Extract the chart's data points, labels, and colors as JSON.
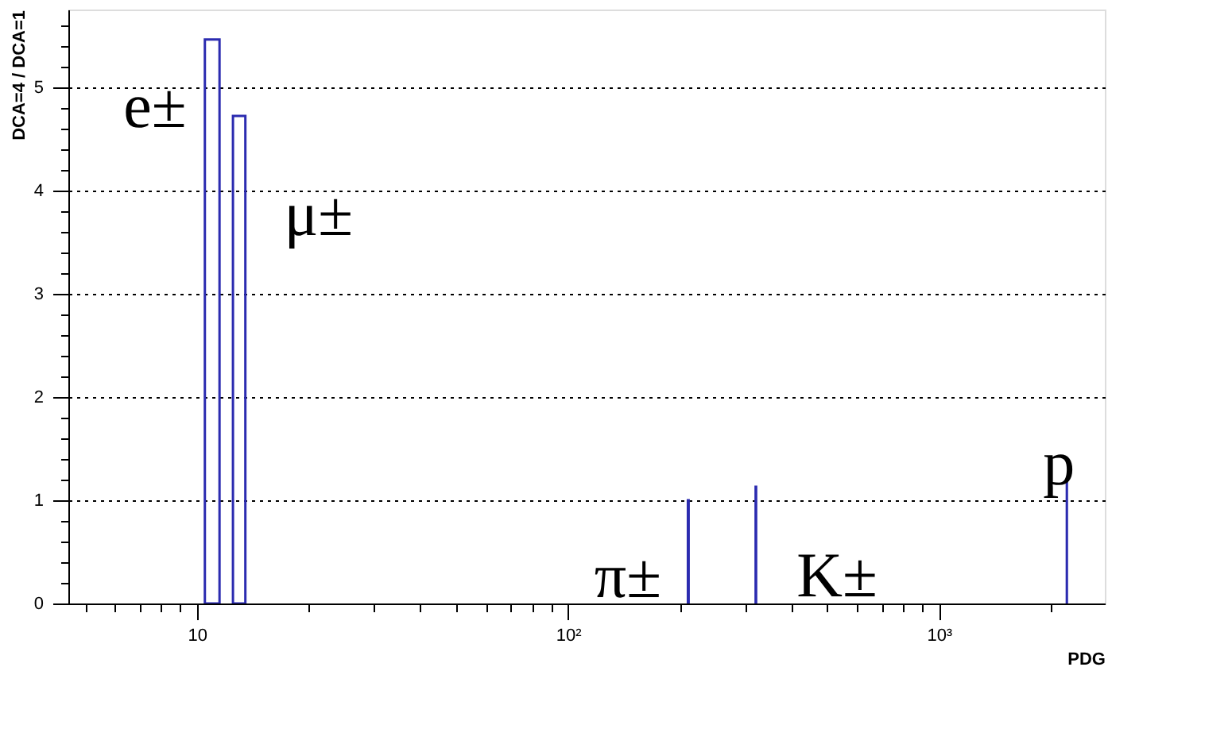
{
  "chart_data": {
    "type": "histogram",
    "xlabel": "PDG",
    "ylabel": "DCA=4 / DCA=1",
    "log": "x",
    "color": "#2b2bb0",
    "bins": [
      10.5,
      11.5,
      12.5,
      13.5,
      210.5,
      211.5,
      320.5,
      321.5,
      2211.5,
      2212.5
    ],
    "values": [
      5.46,
      0,
      4.72,
      0,
      1.0,
      0,
      1.13,
      0,
      1.17
    ],
    "xlim": [
      4.5,
      2800
    ],
    "ylim": [
      0,
      5.75
    ],
    "xticks": [
      {
        "value": 5,
        "label": null
      },
      {
        "value": 6,
        "label": null
      },
      {
        "value": 7,
        "label": null
      },
      {
        "value": 8,
        "label": null
      },
      {
        "value": 9,
        "label": null
      },
      10,
      {
        "value": 20,
        "label": null
      },
      {
        "value": 30,
        "label": null
      },
      {
        "value": 40,
        "label": null
      },
      {
        "value": 50,
        "label": null
      },
      {
        "value": 60,
        "label": null
      },
      {
        "value": 70,
        "label": null
      },
      {
        "value": 80,
        "label": null
      },
      {
        "value": 90,
        "label": null
      },
      {
        "value": 100,
        "label": "10²"
      },
      {
        "value": 200,
        "label": null
      },
      {
        "value": 300,
        "label": null
      },
      {
        "value": 400,
        "label": null
      },
      {
        "value": 500,
        "label": null
      },
      {
        "value": 600,
        "label": null
      },
      {
        "value": 700,
        "label": null
      },
      {
        "value": 800,
        "label": null
      },
      {
        "value": 900,
        "label": null
      },
      {
        "value": 1000,
        "label": "10³"
      },
      {
        "value": 2000,
        "label": null
      }
    ],
    "yticks": [
      0,
      {
        "value": 0.2,
        "label": null
      },
      {
        "value": 0.4,
        "label": null
      },
      {
        "value": 0.6,
        "label": null
      },
      {
        "value": 0.8,
        "label": null
      },
      1,
      {
        "value": 1.2,
        "label": null
      },
      {
        "value": 1.4,
        "label": null
      },
      {
        "value": 1.6,
        "label": null
      },
      {
        "value": 1.8,
        "label": null
      },
      2,
      {
        "value": 2.2,
        "label": null
      },
      {
        "value": 2.4,
        "label": null
      },
      {
        "value": 2.6,
        "label": null
      },
      {
        "value": 2.8,
        "label": null
      },
      3,
      {
        "value": 3.2,
        "label": null
      },
      {
        "value": 3.4,
        "label": null
      },
      {
        "value": 3.6,
        "label": null
      },
      {
        "value": 3.8,
        "label": null
      },
      4,
      {
        "value": 4.2,
        "label": null
      },
      {
        "value": 4.4,
        "label": null
      },
      {
        "value": 4.6,
        "label": null
      },
      {
        "value": 4.8,
        "label": null
      },
      5,
      {
        "value": 5.2,
        "label": null
      },
      {
        "value": 5.4,
        "label": null
      },
      {
        "value": 5.6,
        "label": null
      }
    ],
    "grid": "y",
    "annotations": [
      "e±",
      "μ±",
      "π±",
      "K±",
      "p"
    ]
  }
}
